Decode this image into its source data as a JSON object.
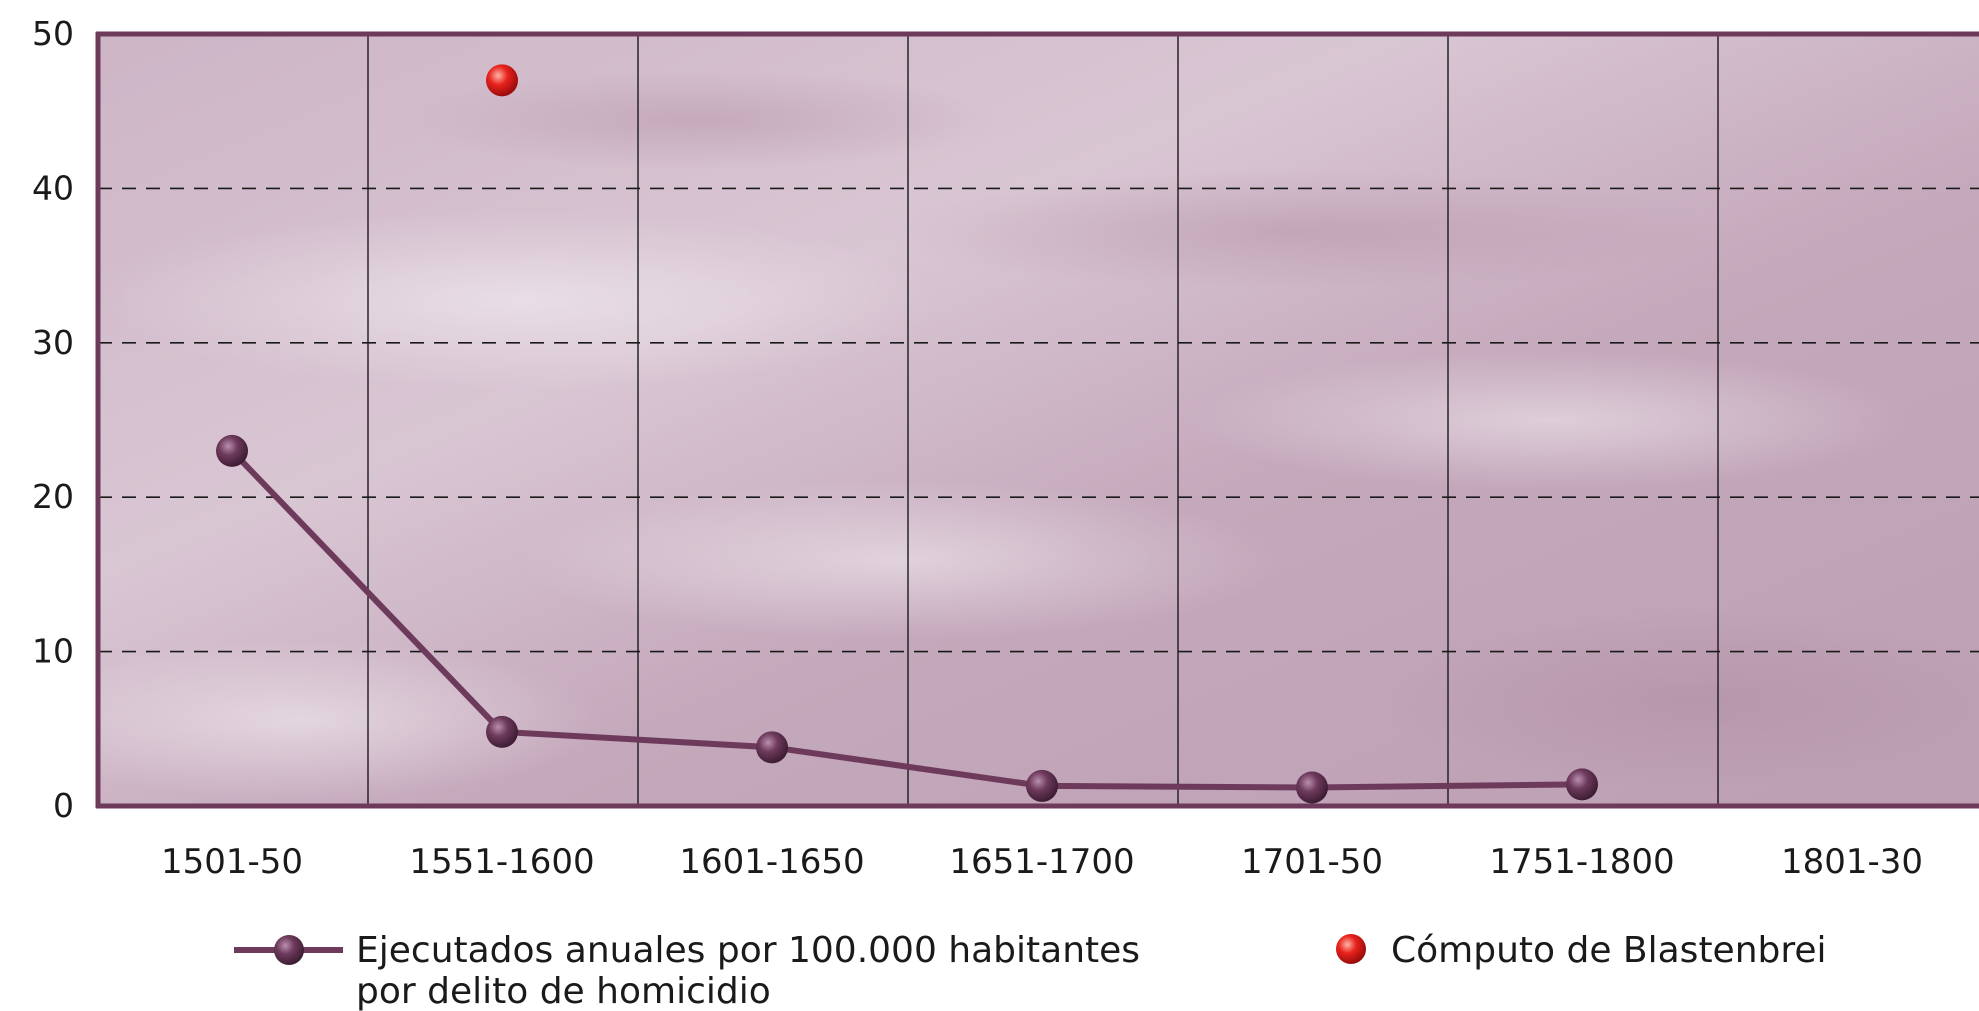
{
  "chart_data": {
    "type": "line",
    "categories": [
      "1501-50",
      "1551-1600",
      "1601-1650",
      "1651-1700",
      "1701-50",
      "1751-1800",
      "1801-30"
    ],
    "series": [
      {
        "name": "Ejecutados anuales por 100.000 habitantes por delito de homicidio",
        "name_lines": [
          "Ejecutados anuales por 100.000 habitantes",
          "por delito de homicidio"
        ],
        "values": [
          23,
          4.8,
          3.8,
          1.3,
          1.2,
          1.4,
          null
        ],
        "color": "#6e3a5c",
        "marker": "circle"
      },
      {
        "name": "Cómputo de Blastenbrei",
        "points": [
          {
            "x": "1551-1600",
            "y": 47
          }
        ],
        "color": "#e01b1b",
        "marker": "circle"
      }
    ],
    "ylim": [
      0,
      50
    ],
    "yticks": [
      0,
      10,
      20,
      30,
      40,
      50
    ],
    "grid": {
      "horizontal": "dashed",
      "vertical": "solid"
    },
    "legend_position": "bottom",
    "colors": {
      "background": "#c8aec0",
      "frame": "#6e3a5c"
    }
  }
}
